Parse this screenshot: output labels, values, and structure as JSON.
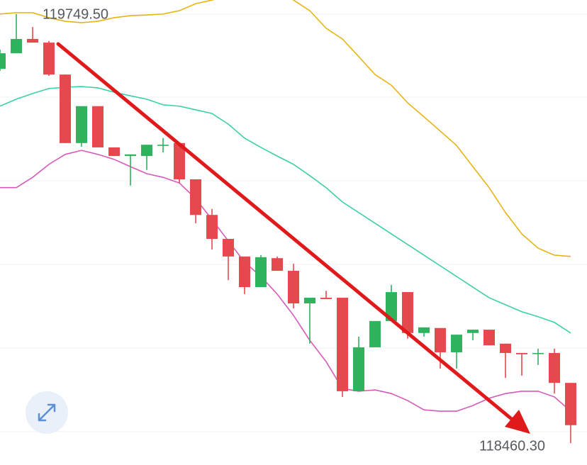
{
  "chart_data": {
    "type": "candlestick",
    "ylim": [
      118394.2,
      119792.1
    ],
    "annotations": [
      "119749.50",
      "118460.30"
    ],
    "colors": {
      "up": "#2fb35e",
      "down": "#e5484d"
    },
    "open": [
      119585,
      119632,
      119675,
      119664,
      119568,
      119362,
      119473,
      119349,
      119323,
      119323,
      119355,
      119362,
      119253,
      119146,
      119074,
      119021,
      118929,
      119016,
      118978,
      118880,
      118897,
      118897,
      118616,
      118748,
      118827,
      118914,
      118791,
      118806,
      118733,
      118791,
      118801,
      118759,
      118731,
      118729,
      118731,
      118641
    ],
    "high": [
      119643,
      119750,
      119711,
      119669,
      119568,
      119473,
      119473,
      119349,
      119328,
      119357,
      119377,
      119362,
      119253,
      119164,
      119074,
      119021,
      119025,
      119021,
      118999,
      118897,
      118918,
      118897,
      118780,
      118827,
      118936,
      118914,
      118808,
      118806,
      118786,
      118801,
      118801,
      118759,
      118731,
      118744,
      118744,
      118641
    ],
    "low": [
      119579,
      119632,
      119664,
      119564,
      119362,
      119351,
      119349,
      119323,
      119234,
      119281,
      119334,
      119242,
      119121,
      119042,
      118950,
      118908,
      118929,
      118978,
      118865,
      118759,
      118893,
      118599,
      118616,
      118748,
      118827,
      118774,
      118780,
      118684,
      118684,
      118769,
      118754,
      118656,
      118663,
      118695,
      118609,
      118460
    ],
    "close": [
      119632,
      119675,
      119664,
      119568,
      119362,
      119473,
      119349,
      119323,
      119328,
      119357,
      119357,
      119253,
      119146,
      119074,
      119021,
      118929,
      119019,
      118978,
      118880,
      118897,
      118893,
      118616,
      118748,
      118827,
      118914,
      118791,
      118808,
      118733,
      118786,
      118801,
      118754,
      118731,
      118727,
      118731,
      118641,
      118514
    ],
    "bands": [
      {
        "color": "#e7b416",
        "values": [
          119750,
          119754,
          119754,
          119739,
          119728,
          119724,
          119728,
          119739,
          119745,
          119747,
          119750,
          119760,
          119781,
          119792,
          119803,
          119809,
          119813,
          119813,
          119792,
          119760,
          119707,
          119675,
          119622,
          119568,
          119536,
          119483,
          119441,
          119398,
          119355,
          119291,
          119228,
          119153,
          119089,
          119046,
          119025,
          119021
        ]
      },
      {
        "color": "#3ecfa5",
        "values": [
          119473,
          119494,
          119511,
          119526,
          119530,
          119532,
          119528,
          119515,
          119504,
          119494,
          119477,
          119473,
          119462,
          119451,
          119419,
          119377,
          119349,
          119323,
          119298,
          119264,
          119228,
          119185,
          119153,
          119121,
          119089,
          119057,
          119025,
          118993,
          118961,
          118929,
          118897,
          118876,
          118855,
          118840,
          118823,
          118791
        ]
      },
      {
        "color": "#d65ab8",
        "values": [
          119228,
          119228,
          119259,
          119298,
          119328,
          119340,
          119328,
          119313,
          119291,
          119270,
          119259,
          119242,
          119195,
          119132,
          119068,
          119004,
          118961,
          118908,
          118844,
          118769,
          118705,
          118624,
          118616,
          118620,
          118609,
          118588,
          118560,
          118556,
          118556,
          118573,
          118595,
          118609,
          118616,
          118616,
          118599,
          118556
        ]
      }
    ]
  }
}
